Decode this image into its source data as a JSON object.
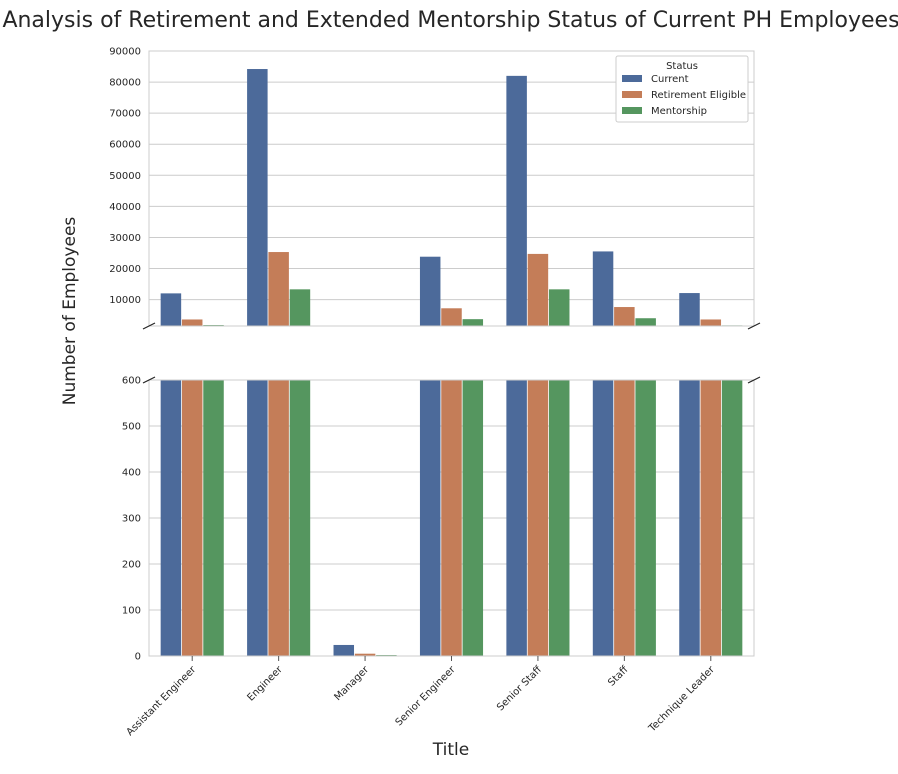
{
  "chart_data": {
    "type": "bar",
    "title": "Analysis of Retirement and Extended Mentorship Status of Current PH Employees",
    "xlabel": "Title",
    "ylabel": "Number of Employees",
    "categories": [
      "Assistant Engineer",
      "Engineer",
      "Manager",
      "Senior Engineer",
      "Senior Staff",
      "Staff",
      "Technique Leader"
    ],
    "series": [
      {
        "name": "Current",
        "color": "#4c6a9a",
        "values": [
          12000,
          84200,
          24,
          23800,
          82000,
          25500,
          12100
        ]
      },
      {
        "name": "Retirement Eligible",
        "color": "#c47d58",
        "values": [
          3600,
          25300,
          5,
          7200,
          24700,
          7600,
          3600
        ]
      },
      {
        "name": "Mentorship",
        "color": "#55965f",
        "values": [
          1800,
          13300,
          2,
          3700,
          13300,
          4000,
          1700
        ]
      }
    ],
    "legend": {
      "title": "Status",
      "placement": "top-right"
    },
    "broken_axis": {
      "upper": {
        "ylim": [
          1500,
          90000
        ],
        "ticks": [
          10000,
          20000,
          30000,
          40000,
          50000,
          60000,
          70000,
          80000,
          90000
        ]
      },
      "lower": {
        "ylim": [
          0,
          600
        ],
        "ticks": [
          0,
          100,
          200,
          300,
          400,
          500,
          600
        ]
      }
    },
    "grid": true
  }
}
